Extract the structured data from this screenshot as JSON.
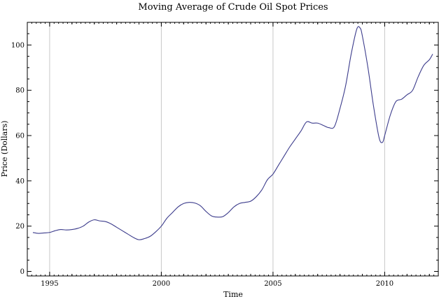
{
  "chart_data": {
    "type": "line",
    "title": "Moving Average of Crude Oil Spot Prices",
    "xlabel": "Time",
    "ylabel": "Price (Dollars)",
    "xlim": [
      1994.0,
      2012.4
    ],
    "ylim": [
      -2,
      110
    ],
    "xticks": [
      1995,
      2000,
      2005,
      2010
    ],
    "yticks": [
      0,
      20,
      40,
      60,
      80,
      100
    ],
    "vertical_grid": true,
    "horizontal_grid": false,
    "line_color": "#3c3c8c",
    "series": [
      {
        "x": [
          1994.25,
          1994.5,
          1994.75,
          1995.0,
          1995.25,
          1995.5,
          1995.75,
          1996.0,
          1996.25,
          1996.5,
          1996.75,
          1997.0,
          1997.25,
          1997.5,
          1997.75,
          1998.0,
          1998.25,
          1998.5,
          1998.75,
          1999.0,
          1999.25,
          1999.5,
          1999.75,
          2000.0,
          2000.25,
          2000.5,
          2000.75,
          2001.0,
          2001.25,
          2001.5,
          2001.75,
          2002.0,
          2002.25,
          2002.5,
          2002.75,
          2003.0,
          2003.25,
          2003.5,
          2003.75,
          2004.0,
          2004.25,
          2004.5,
          2004.75,
          2005.0,
          2005.25,
          2005.5,
          2005.75,
          2006.0,
          2006.25,
          2006.5,
          2006.75,
          2007.0,
          2007.25,
          2007.5,
          2007.75,
          2008.0,
          2008.25,
          2008.5,
          2008.75,
          2008.9,
          2009.0,
          2009.25,
          2009.5,
          2009.75,
          2009.9,
          2010.0,
          2010.25,
          2010.5,
          2010.75,
          2011.0,
          2011.25,
          2011.5,
          2011.75,
          2012.0,
          2012.15
        ],
        "y": [
          17.2,
          16.8,
          17.0,
          17.2,
          18.0,
          18.5,
          18.3,
          18.5,
          19.0,
          20.0,
          21.8,
          22.8,
          22.3,
          22.0,
          21.0,
          19.5,
          18.0,
          16.5,
          15.0,
          14.0,
          14.5,
          15.5,
          17.5,
          20.0,
          23.5,
          26.0,
          28.5,
          30.0,
          30.5,
          30.2,
          29.0,
          26.5,
          24.5,
          24.0,
          24.2,
          26.0,
          28.5,
          30.0,
          30.5,
          31.0,
          33.0,
          36.0,
          40.5,
          43.0,
          47.0,
          51.0,
          55.0,
          58.5,
          62.0,
          66.0,
          65.5,
          65.5,
          64.5,
          63.5,
          64.0,
          72.0,
          82.0,
          96.0,
          107.0,
          107.5,
          104.0,
          90.0,
          73.0,
          59.0,
          57.0,
          60.0,
          69.0,
          75.0,
          76.0,
          78.0,
          80.0,
          86.0,
          91.0,
          93.5,
          96.0
        ]
      }
    ]
  }
}
